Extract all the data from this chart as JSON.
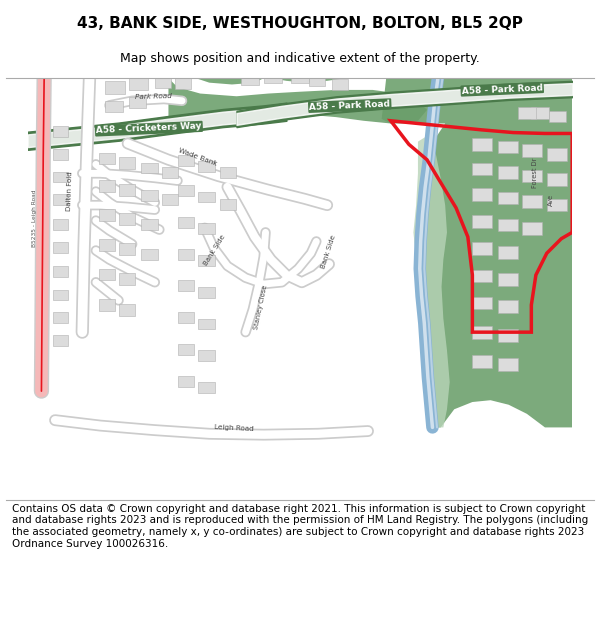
{
  "title": "43, BANK SIDE, WESTHOUGHTON, BOLTON, BL5 2QP",
  "subtitle": "Map shows position and indicative extent of the property.",
  "footer": "Contains OS data © Crown copyright and database right 2021. This information is subject to Crown copyright and database rights 2023 and is reproduced with the permission of HM Land Registry. The polygons (including the associated geometry, namely x, y co-ordinates) are subject to Crown copyright and database rights 2023 Ordnance Survey 100026316.",
  "map_bg": "#f0eeeb",
  "road_white": "#ffffff",
  "road_border": "#cccccc",
  "green_dark": "#6a9e6a",
  "green_light": "#b8d4b8",
  "blue_river": "#8ab4d4",
  "red_outline": "#e8141e",
  "red_fill": "#f5b8b8",
  "building_color": "#dcdcdc",
  "building_border": "#b0b0b0",
  "a58_green": "#4a7a4a",
  "title_fontsize": 11,
  "subtitle_fontsize": 9,
  "footer_fontsize": 7.5
}
